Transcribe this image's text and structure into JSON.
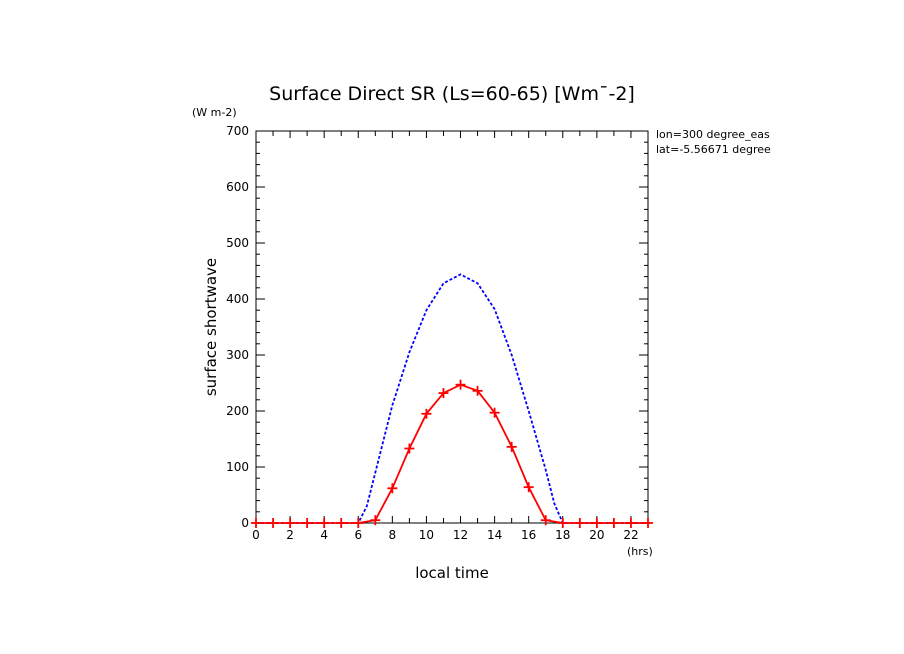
{
  "chart_data": {
    "type": "line",
    "title": "Surface Direct SR (Ls=60-65) [Wm¯-2]",
    "ylabel": "surface shortwave",
    "yunit": "(W m-2)",
    "xlabel": "local time",
    "xunit": "(hrs)",
    "annotations": [
      "lon=300 degree_eas",
      "lat=-5.56671 degree"
    ],
    "xlim": [
      0,
      23
    ],
    "ylim": [
      0,
      700
    ],
    "xticks": [
      0,
      2,
      4,
      6,
      8,
      10,
      12,
      14,
      16,
      18,
      20,
      22
    ],
    "yticks": [
      0,
      100,
      200,
      300,
      400,
      500,
      600,
      700
    ],
    "grid": false,
    "series": [
      {
        "color": "#0000ff",
        "style": "dashed",
        "x": [
          0,
          1,
          2,
          3,
          4,
          5,
          6,
          6.5,
          7,
          8,
          9,
          10,
          11,
          12,
          13,
          14,
          15,
          16,
          17,
          17.5,
          18,
          19,
          20,
          21,
          22,
          23
        ],
        "values": [
          0,
          0,
          0,
          0,
          0,
          0,
          0,
          30,
          90,
          210,
          305,
          380,
          428,
          444,
          428,
          382,
          300,
          200,
          95,
          35,
          0,
          0,
          0,
          0,
          0,
          0
        ]
      },
      {
        "color": "#ff0000",
        "style": "solid",
        "marker": "plus",
        "x": [
          0,
          1,
          2,
          3,
          4,
          5,
          6,
          7,
          8,
          9,
          10,
          11,
          12,
          13,
          14,
          15,
          16,
          17,
          18,
          19,
          20,
          21,
          22,
          23
        ],
        "values": [
          0,
          0,
          0,
          0,
          0,
          0,
          0,
          5,
          62,
          133,
          195,
          232,
          247,
          236,
          197,
          136,
          64,
          5,
          0,
          0,
          0,
          0,
          0,
          0
        ]
      }
    ]
  }
}
